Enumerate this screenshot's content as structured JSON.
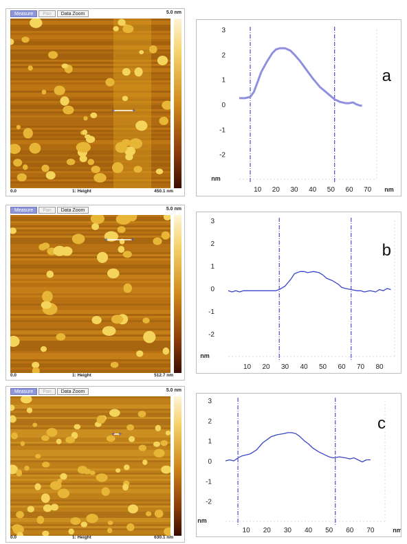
{
  "afm_images": [
    {
      "toolbar": {
        "measure": "Measure",
        "pan": "Pan",
        "zoom": "Data Zoom"
      },
      "scale_max": "5.0 nm",
      "footer_left": "0.0",
      "footer_channel": "1: Height",
      "footer_size": "450.1 nm"
    },
    {
      "toolbar": {
        "measure": "Measure",
        "pan": "Pan",
        "zoom": "Data Zoom"
      },
      "scale_max": "5.0 nm",
      "footer_left": "0.0",
      "footer_channel": "1: Height",
      "footer_size": "512.7 nm"
    },
    {
      "toolbar": {
        "measure": "Measure",
        "pan": "Pan",
        "zoom": "Data Zoom"
      },
      "scale_max": "5.0 nm",
      "footer_left": "0.0",
      "footer_channel": "1: Height",
      "footer_size": "630.1 nm"
    }
  ],
  "chart_data": [
    {
      "type": "line",
      "label": "a",
      "ylabel": "nm",
      "xunit": "nm",
      "yticks": [
        3,
        2,
        1,
        0,
        -1,
        -2
      ],
      "xticks": [
        10,
        20,
        30,
        40,
        50,
        60,
        70
      ],
      "xlim": [
        0,
        75
      ],
      "ylim": [
        -3,
        3
      ],
      "markers": [
        6,
        52
      ],
      "series": [
        {
          "x": [
            0,
            3,
            6,
            8,
            10,
            12,
            15,
            18,
            20,
            22,
            25,
            28,
            30,
            33,
            36,
            40,
            44,
            48,
            52,
            55,
            58,
            60,
            62,
            64,
            66,
            67
          ],
          "y": [
            0.25,
            0.25,
            0.3,
            0.5,
            0.9,
            1.3,
            1.7,
            2.05,
            2.2,
            2.25,
            2.25,
            2.15,
            2.0,
            1.75,
            1.45,
            1.05,
            0.7,
            0.45,
            0.2,
            0.1,
            0.05,
            0.05,
            0.08,
            0.0,
            -0.05,
            -0.05
          ]
        }
      ]
    },
    {
      "type": "line",
      "label": "b",
      "ylabel": "nm",
      "xunit": "nm",
      "yticks": [
        3,
        2,
        1,
        0,
        -1,
        -2
      ],
      "xticks": [
        10,
        20,
        30,
        40,
        50,
        60,
        70,
        80
      ],
      "xlim": [
        0,
        88
      ],
      "ylim": [
        -3,
        3
      ],
      "markers": [
        27,
        65
      ],
      "series": [
        {
          "x": [
            0,
            2,
            4,
            6,
            8,
            10,
            12,
            15,
            18,
            20,
            22,
            25,
            27,
            30,
            33,
            35,
            38,
            40,
            42,
            45,
            48,
            50,
            52,
            55,
            58,
            60,
            62,
            65,
            68,
            70,
            72,
            75,
            78,
            80,
            82,
            84,
            86
          ],
          "y": [
            -0.1,
            -0.15,
            -0.1,
            -0.15,
            -0.1,
            -0.1,
            -0.1,
            -0.1,
            -0.1,
            -0.1,
            -0.1,
            -0.1,
            -0.05,
            0.1,
            0.4,
            0.65,
            0.75,
            0.75,
            0.7,
            0.75,
            0.7,
            0.6,
            0.45,
            0.35,
            0.2,
            0.05,
            0.0,
            -0.05,
            -0.1,
            -0.1,
            -0.15,
            -0.1,
            -0.15,
            -0.05,
            -0.1,
            0.0,
            -0.05
          ]
        }
      ]
    },
    {
      "type": "line",
      "label": "c",
      "ylabel": "nm",
      "xunit": "nm",
      "yticks": [
        3,
        2,
        1,
        0,
        -1,
        -2
      ],
      "xticks": [
        10,
        20,
        30,
        40,
        50,
        60,
        70
      ],
      "xlim": [
        0,
        77
      ],
      "ylim": [
        -3,
        3
      ],
      "markers": [
        6,
        53
      ],
      "series": [
        {
          "x": [
            0,
            2,
            4,
            6,
            8,
            10,
            12,
            15,
            18,
            20,
            22,
            25,
            28,
            30,
            32,
            34,
            36,
            38,
            40,
            42,
            45,
            48,
            50,
            52,
            55,
            58,
            60,
            62,
            64,
            66,
            68,
            70
          ],
          "y": [
            0.0,
            0.05,
            0.0,
            0.15,
            0.25,
            0.3,
            0.35,
            0.55,
            0.9,
            1.05,
            1.2,
            1.3,
            1.35,
            1.4,
            1.4,
            1.35,
            1.2,
            1.0,
            0.85,
            0.65,
            0.45,
            0.3,
            0.2,
            0.15,
            0.2,
            0.15,
            0.1,
            0.15,
            0.05,
            -0.05,
            0.05,
            0.05
          ]
        }
      ]
    }
  ]
}
